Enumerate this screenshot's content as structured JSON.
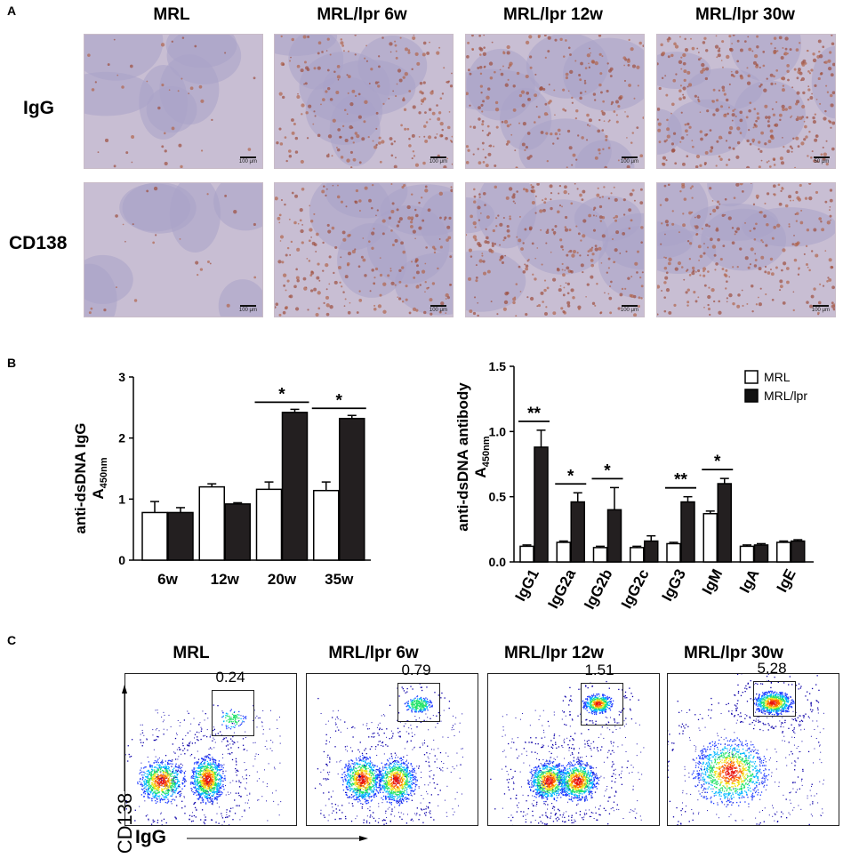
{
  "panel_labels": {
    "a": "A",
    "b": "B",
    "c": "C"
  },
  "panel_a": {
    "column_titles": [
      "MRL",
      "MRL/lpr  6w",
      "MRL/lpr 12w",
      "MRL/lpr 30w"
    ],
    "row_labels": [
      "IgG",
      "CD138"
    ],
    "scale_labels": [
      [
        "100 μm",
        "100 μm",
        "100 μm",
        "50 μm"
      ],
      [
        "100 μm",
        "100 μm",
        "100 μm",
        "100 μm"
      ]
    ],
    "stain_intensity": [
      [
        0.08,
        0.45,
        0.5,
        0.75
      ],
      [
        0.05,
        0.5,
        0.6,
        0.55
      ]
    ]
  },
  "legend": {
    "items": [
      "MRL",
      "MRL/lpr"
    ]
  },
  "panel_c": {
    "titles": [
      "MRL",
      "MRL/lpr  6w",
      "MRL/lpr 12w",
      "MRL/lpr 30w"
    ],
    "gate_values": [
      "0.24",
      "0.79",
      "1.51",
      "5.28"
    ],
    "y_axis_label": "CD138",
    "x_axis_label": "IgG"
  },
  "chart_data": [
    {
      "type": "bar",
      "categories": [
        "6w",
        "12w",
        "20w",
        "35w"
      ],
      "series": [
        {
          "name": "MRL",
          "values": [
            0.78,
            1.2,
            1.16,
            1.14
          ],
          "errors": [
            0.18,
            0.05,
            0.12,
            0.14
          ]
        },
        {
          "name": "MRL/lpr",
          "values": [
            0.78,
            0.92,
            2.42,
            2.32
          ],
          "errors": [
            0.08,
            0.02,
            0.05,
            0.05
          ]
        }
      ],
      "ylabel": "anti-dsDNA IgG",
      "ylabel_sub_main": "A",
      "ylabel_sub_script": "450nm",
      "ylim": [
        0,
        3
      ],
      "yticks": [
        0,
        1,
        2,
        3
      ],
      "significance": [
        {
          "category": "20w",
          "label": "*"
        },
        {
          "category": "35w",
          "label": "*"
        }
      ]
    },
    {
      "type": "bar",
      "categories": [
        "IgG1",
        "IgG2a",
        "IgG2b",
        "IgG2c",
        "IgG3",
        "IgM",
        "IgA",
        "IgE"
      ],
      "series": [
        {
          "name": "MRL",
          "values": [
            0.12,
            0.15,
            0.11,
            0.11,
            0.14,
            0.37,
            0.12,
            0.15
          ],
          "errors": [
            0.01,
            0.01,
            0.01,
            0.01,
            0.01,
            0.02,
            0.01,
            0.01
          ]
        },
        {
          "name": "MRL/lpr",
          "values": [
            0.88,
            0.46,
            0.4,
            0.16,
            0.46,
            0.6,
            0.13,
            0.16
          ],
          "errors": [
            0.13,
            0.07,
            0.17,
            0.04,
            0.04,
            0.04,
            0.01,
            0.01
          ]
        }
      ],
      "ylabel": "anti-dsDNA antibody",
      "ylabel_sub_main": "A",
      "ylabel_sub_script": "450nm",
      "ylim": [
        0,
        1.5
      ],
      "yticks": [
        "0.0",
        "0.5",
        "1.0",
        "1.5"
      ],
      "significance": [
        {
          "category": "IgG1",
          "label": "**"
        },
        {
          "category": "IgG2a",
          "label": "*"
        },
        {
          "category": "IgG2b",
          "label": "*"
        },
        {
          "category": "IgG3",
          "label": "**"
        },
        {
          "category": "IgM",
          "label": "*"
        }
      ],
      "legend_position": "top-right"
    }
  ]
}
